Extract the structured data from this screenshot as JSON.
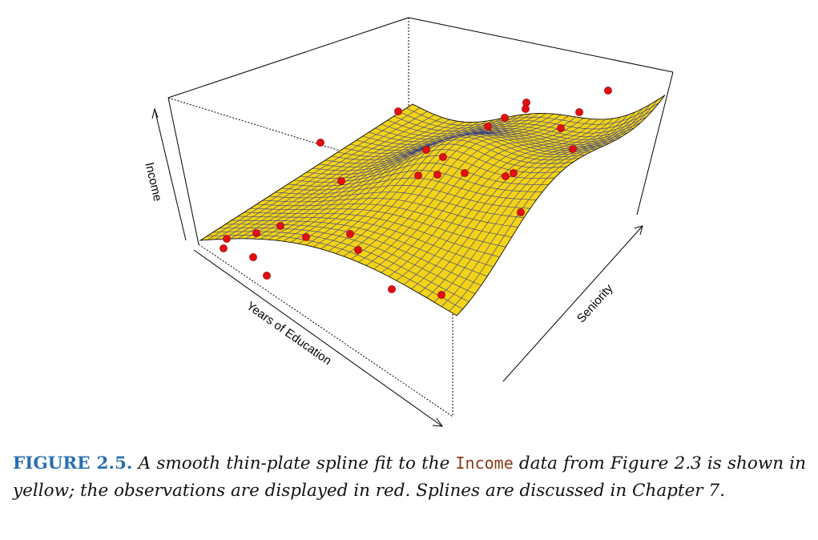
{
  "figure": {
    "axis_labels": {
      "z": "Income",
      "x": "Years of Education",
      "y": "Seniority"
    },
    "colors": {
      "surface": "#f2d317",
      "mesh": "#3a3f8a",
      "points": "#e01010",
      "box": "#000000"
    }
  },
  "caption": {
    "label": "FIGURE 2.5.",
    "text_before_code": " A smooth thin-plate spline fit to the ",
    "code": "Income",
    "text_after_code": " data from Figure 2.3 is shown in yellow; the observations are displayed in red. Splines are discussed in Chapter 7."
  }
}
